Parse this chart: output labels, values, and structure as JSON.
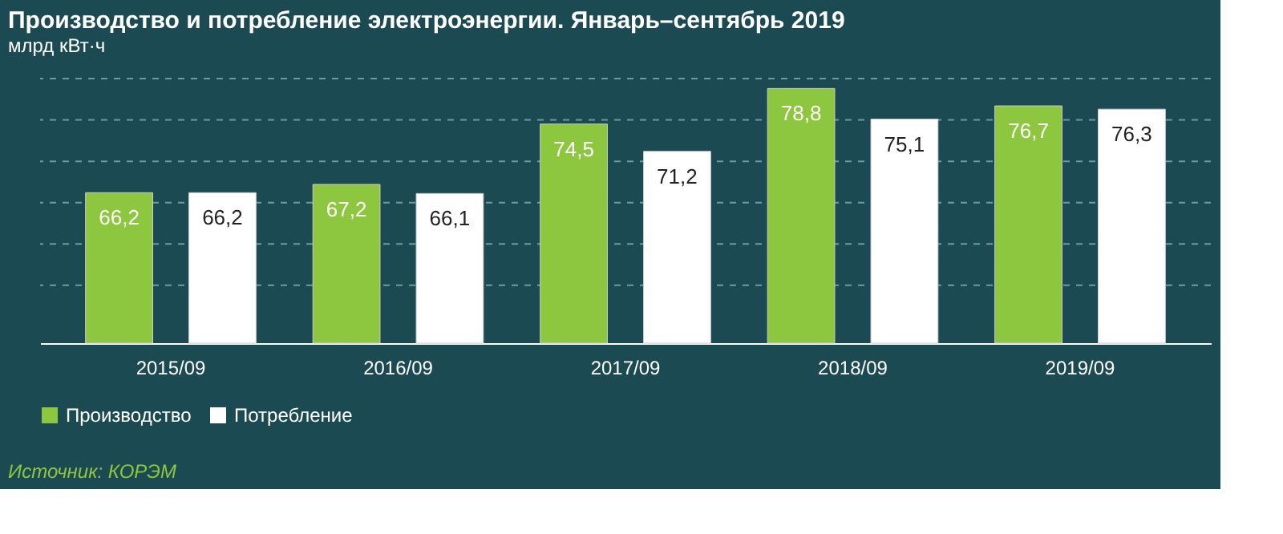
{
  "chart_data": {
    "type": "bar",
    "title": "Производство и потребление электроэнергии. Январь–сентябрь 2019",
    "subtitle": "млрд кВт·ч",
    "categories": [
      "2015/09",
      "2016/09",
      "2017/09",
      "2018/09",
      "2019/09"
    ],
    "series": [
      {
        "name": "Производство",
        "color": "#8dc63f",
        "values": [
          66.2,
          67.2,
          74.5,
          78.8,
          76.7
        ],
        "value_labels": [
          "66,2",
          "67,2",
          "74,5",
          "78,8",
          "76,7"
        ]
      },
      {
        "name": "Потребление",
        "color": "#ffffff",
        "values": [
          66.2,
          66.1,
          71.2,
          75.1,
          76.3
        ],
        "value_labels": [
          "66,2",
          "66,1",
          "71,2",
          "75,1",
          "76,3"
        ]
      }
    ],
    "ylim": [
      48,
      80
    ],
    "yticks": [
      {
        "value": 55,
        "label": null
      },
      {
        "value": 60,
        "label": null
      },
      {
        "value": 65,
        "label": null
      },
      {
        "value": 70,
        "label": null
      },
      {
        "value": 75,
        "label": null
      },
      {
        "value": 80,
        "label": null
      }
    ],
    "tick_labels": "x",
    "grid": "y",
    "legend": "bottom",
    "annotations": [
      "Источник: КОРЭМ"
    ]
  }
}
